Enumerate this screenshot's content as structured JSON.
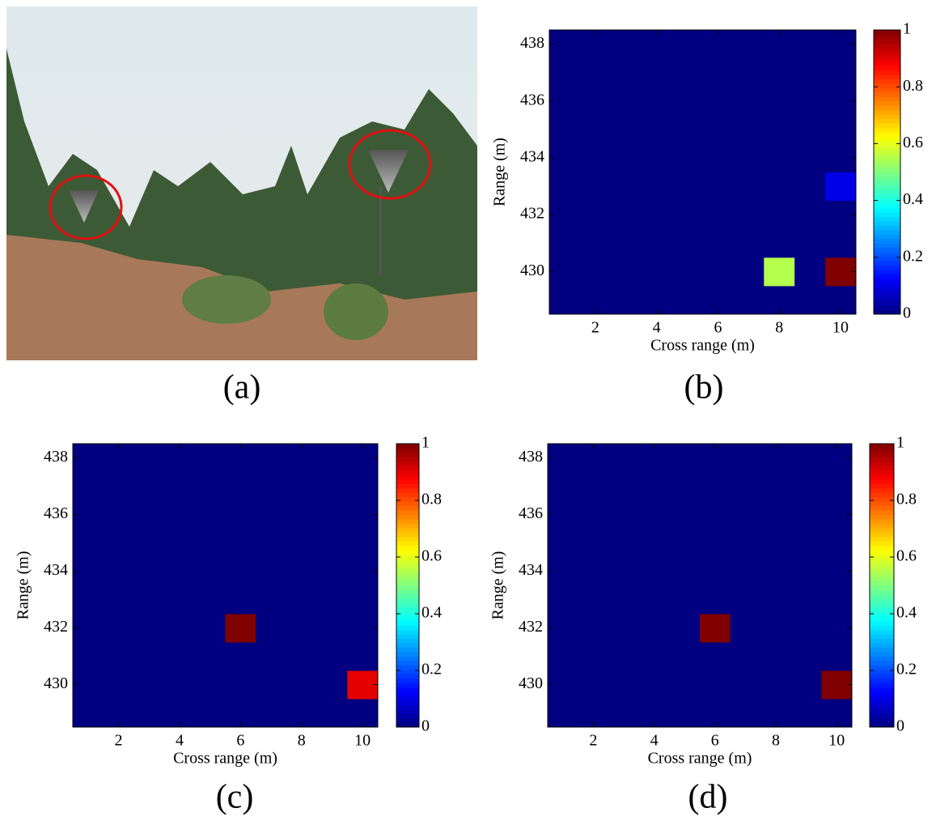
{
  "chart_data": [
    {
      "type": "image",
      "caption": "(a)"
    },
    {
      "type": "heatmap",
      "caption": "(b)",
      "xlabel": "Cross range (m)",
      "ylabel": "Range (m)",
      "x": [
        1,
        2,
        3,
        4,
        5,
        6,
        7,
        8,
        9,
        10
      ],
      "y": [
        429,
        430,
        431,
        432,
        433,
        434,
        435,
        436,
        437,
        438
      ],
      "z": [
        [
          0,
          0,
          0,
          0,
          0,
          0,
          0,
          0,
          0,
          0
        ],
        [
          0,
          0,
          0,
          0,
          0,
          0,
          0,
          0.55,
          0,
          1
        ],
        [
          0,
          0,
          0,
          0,
          0,
          0,
          0,
          0,
          0,
          0
        ],
        [
          0,
          0,
          0,
          0,
          0,
          0,
          0,
          0,
          0,
          0
        ],
        [
          0,
          0,
          0,
          0,
          0,
          0,
          0,
          0,
          0,
          0.1
        ],
        [
          0,
          0,
          0,
          0,
          0,
          0,
          0,
          0,
          0,
          0
        ],
        [
          0,
          0,
          0,
          0,
          0,
          0,
          0,
          0,
          0,
          0
        ],
        [
          0,
          0,
          0,
          0,
          0,
          0,
          0,
          0,
          0,
          0
        ],
        [
          0,
          0,
          0,
          0,
          0,
          0,
          0,
          0,
          0,
          0
        ],
        [
          0,
          0,
          0,
          0,
          0,
          0,
          0,
          0,
          0,
          0
        ]
      ],
      "xlim": [
        0.5,
        10.5
      ],
      "ylim": [
        428.5,
        438.5
      ],
      "xticks": [
        2,
        4,
        6,
        8,
        10
      ],
      "yticks": [
        430,
        432,
        434,
        436,
        438
      ],
      "clim": [
        0,
        1
      ],
      "cticks": [
        0,
        0.2,
        0.4,
        0.6,
        0.8,
        1
      ],
      "colormap": "jet"
    },
    {
      "type": "heatmap",
      "caption": "(c)",
      "xlabel": "Cross range (m)",
      "ylabel": "Range (m)",
      "x": [
        1,
        2,
        3,
        4,
        5,
        6,
        7,
        8,
        9,
        10
      ],
      "y": [
        429,
        430,
        431,
        432,
        433,
        434,
        435,
        436,
        437,
        438
      ],
      "z": [
        [
          0,
          0,
          0,
          0,
          0,
          0,
          0,
          0,
          0,
          0
        ],
        [
          0,
          0,
          0,
          0,
          0,
          0,
          0,
          0,
          0,
          0.9
        ],
        [
          0,
          0,
          0,
          0,
          0,
          0,
          0,
          0,
          0,
          0
        ],
        [
          0,
          0,
          0,
          0,
          0,
          1,
          0,
          0,
          0,
          0
        ],
        [
          0,
          0,
          0,
          0,
          0,
          0,
          0,
          0,
          0,
          0
        ],
        [
          0,
          0,
          0,
          0,
          0,
          0,
          0,
          0,
          0,
          0
        ],
        [
          0,
          0,
          0,
          0,
          0,
          0,
          0,
          0,
          0,
          0
        ],
        [
          0,
          0,
          0,
          0,
          0,
          0,
          0,
          0,
          0,
          0
        ],
        [
          0,
          0,
          0,
          0,
          0,
          0,
          0,
          0,
          0,
          0
        ],
        [
          0,
          0,
          0,
          0,
          0,
          0,
          0,
          0,
          0,
          0
        ]
      ],
      "xlim": [
        0.5,
        10.5
      ],
      "ylim": [
        428.5,
        438.5
      ],
      "xticks": [
        2,
        4,
        6,
        8,
        10
      ],
      "yticks": [
        430,
        432,
        434,
        436,
        438
      ],
      "clim": [
        0,
        1
      ],
      "cticks": [
        0,
        0.2,
        0.4,
        0.6,
        0.8,
        1
      ],
      "colormap": "jet"
    },
    {
      "type": "heatmap",
      "caption": "(d)",
      "xlabel": "Cross range (m)",
      "ylabel": "Range (m)",
      "x": [
        1,
        2,
        3,
        4,
        5,
        6,
        7,
        8,
        9,
        10
      ],
      "y": [
        429,
        430,
        431,
        432,
        433,
        434,
        435,
        436,
        437,
        438
      ],
      "z": [
        [
          0,
          0,
          0,
          0,
          0,
          0,
          0,
          0,
          0,
          0
        ],
        [
          0,
          0,
          0,
          0,
          0,
          0,
          0,
          0,
          0,
          1
        ],
        [
          0,
          0,
          0,
          0,
          0,
          0,
          0,
          0,
          0,
          0
        ],
        [
          0,
          0,
          0,
          0,
          0,
          1,
          0,
          0,
          0,
          0
        ],
        [
          0,
          0,
          0,
          0,
          0,
          0,
          0,
          0,
          0,
          0
        ],
        [
          0,
          0,
          0,
          0,
          0,
          0,
          0,
          0,
          0,
          0
        ],
        [
          0,
          0,
          0,
          0,
          0,
          0,
          0,
          0,
          0,
          0
        ],
        [
          0,
          0,
          0,
          0,
          0,
          0,
          0,
          0,
          0,
          0
        ],
        [
          0,
          0,
          0,
          0,
          0,
          0,
          0,
          0,
          0,
          0
        ],
        [
          0,
          0,
          0,
          0,
          0,
          0,
          0,
          0,
          0,
          0
        ]
      ],
      "xlim": [
        0.5,
        10.5
      ],
      "ylim": [
        428.5,
        438.5
      ],
      "xticks": [
        2,
        4,
        6,
        8,
        10
      ],
      "yticks": [
        430,
        432,
        434,
        436,
        438
      ],
      "clim": [
        0,
        1
      ],
      "cticks": [
        0,
        0.2,
        0.4,
        0.6,
        0.8,
        1
      ],
      "colormap": "jet"
    }
  ]
}
